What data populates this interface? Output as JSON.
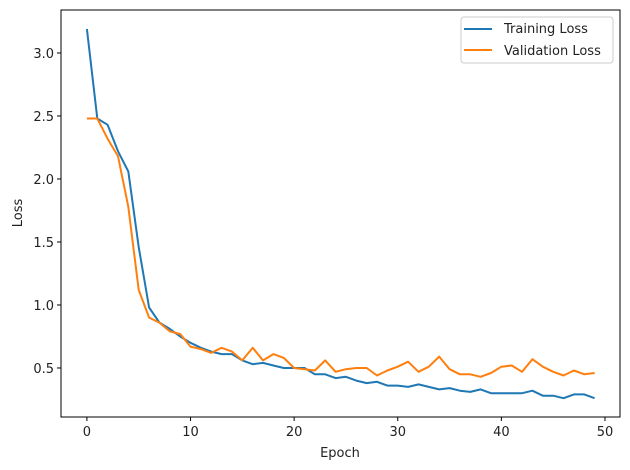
{
  "chart_data": {
    "type": "line",
    "title": "",
    "xlabel": "Epoch",
    "ylabel": "Loss",
    "xlim": [
      -2.5,
      51.45
    ],
    "ylim": [
      0.111,
      3.341
    ],
    "xticks": [
      0,
      10,
      20,
      30,
      40,
      50
    ],
    "xtick_labels": [
      "0",
      "10",
      "20",
      "30",
      "40",
      "50"
    ],
    "yticks": [
      0.5,
      1.0,
      1.5,
      2.0,
      2.5,
      3.0
    ],
    "ytick_labels": [
      "0.5",
      "1.0",
      "1.5",
      "2.0",
      "2.5",
      "3.0"
    ],
    "grid": false,
    "legend_position": "upper right",
    "x": [
      0,
      1,
      2,
      3,
      4,
      5,
      6,
      7,
      8,
      9,
      10,
      11,
      12,
      13,
      14,
      15,
      16,
      17,
      18,
      19,
      20,
      21,
      22,
      23,
      24,
      25,
      26,
      27,
      28,
      29,
      30,
      31,
      32,
      33,
      34,
      35,
      36,
      37,
      38,
      39,
      40,
      41,
      42,
      43,
      44,
      45,
      46,
      47,
      48,
      49
    ],
    "series": [
      {
        "name": "Training Loss",
        "color": "#1f77b4",
        "values": [
          3.19,
          2.48,
          2.43,
          2.22,
          2.06,
          1.46,
          0.98,
          0.86,
          0.81,
          0.75,
          0.7,
          0.66,
          0.63,
          0.61,
          0.61,
          0.56,
          0.53,
          0.54,
          0.52,
          0.5,
          0.5,
          0.5,
          0.45,
          0.45,
          0.42,
          0.43,
          0.4,
          0.38,
          0.39,
          0.36,
          0.36,
          0.35,
          0.37,
          0.35,
          0.33,
          0.34,
          0.32,
          0.31,
          0.33,
          0.3,
          0.3,
          0.3,
          0.3,
          0.32,
          0.28,
          0.28,
          0.26,
          0.29,
          0.29,
          0.26
        ]
      },
      {
        "name": "Validation Loss",
        "color": "#ff7f0e",
        "values": [
          2.48,
          2.48,
          2.32,
          2.18,
          1.78,
          1.12,
          0.9,
          0.86,
          0.79,
          0.77,
          0.67,
          0.65,
          0.62,
          0.66,
          0.63,
          0.56,
          0.66,
          0.56,
          0.61,
          0.58,
          0.5,
          0.49,
          0.48,
          0.56,
          0.47,
          0.49,
          0.5,
          0.5,
          0.44,
          0.48,
          0.51,
          0.55,
          0.47,
          0.51,
          0.59,
          0.49,
          0.45,
          0.45,
          0.43,
          0.46,
          0.51,
          0.52,
          0.47,
          0.57,
          0.51,
          0.47,
          0.44,
          0.48,
          0.45,
          0.46
        ]
      }
    ]
  }
}
